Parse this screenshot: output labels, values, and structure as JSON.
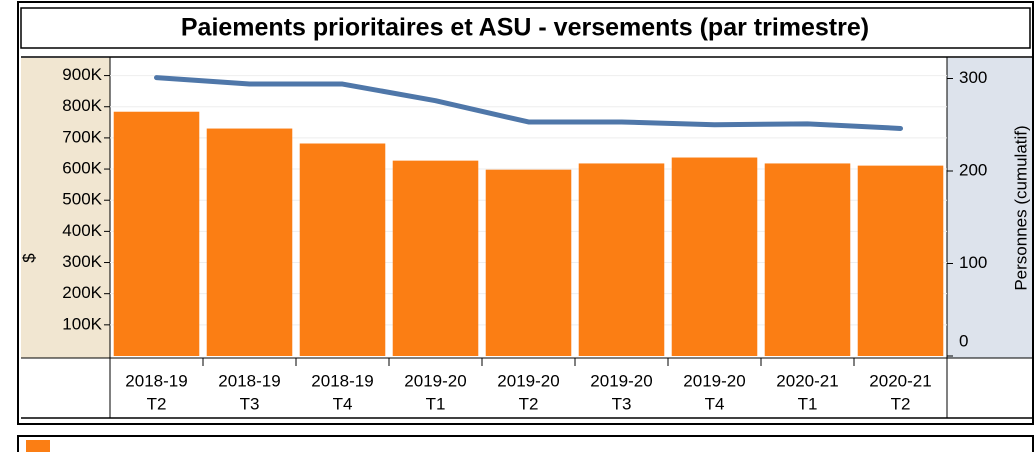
{
  "chart_data": {
    "type": "bar",
    "title": "Paiements prioritaires et ASU - versements (par trimestre)",
    "categories": [
      [
        "2018-19",
        "T2"
      ],
      [
        "2018-19",
        "T3"
      ],
      [
        "2018-19",
        "T4"
      ],
      [
        "2019-20",
        "T1"
      ],
      [
        "2019-20",
        "T2"
      ],
      [
        "2019-20",
        "T3"
      ],
      [
        "2019-20",
        "T4"
      ],
      [
        "2020-21",
        "T1"
      ],
      [
        "2020-21",
        "T2"
      ]
    ],
    "y_label": "$",
    "y2_label": "Personnes (cumulatif)",
    "ylim": [
      0,
      950000
    ],
    "yticks": [
      {
        "value": 100000,
        "label": "100K"
      },
      {
        "value": 200000,
        "label": "200K"
      },
      {
        "value": 300000,
        "label": "300K"
      },
      {
        "value": 400000,
        "label": "400K"
      },
      {
        "value": 500000,
        "label": "500K"
      },
      {
        "value": 600000,
        "label": "600K"
      },
      {
        "value": 700000,
        "label": "700K"
      },
      {
        "value": 800000,
        "label": "800K"
      },
      {
        "value": 900000,
        "label": "900K"
      }
    ],
    "y2lim": [
      0,
      320
    ],
    "y2ticks": [
      0,
      100,
      200,
      300
    ],
    "grid": true,
    "series": [
      {
        "type": "bar",
        "color": "#fb7e14",
        "values": [
          784000,
          730000,
          682000,
          627000,
          598000,
          618000,
          637000,
          618000,
          611000
        ]
      },
      {
        "type": "line",
        "axis": "y2",
        "color": "#4f77a9",
        "values": [
          301,
          294,
          294,
          276,
          253,
          253,
          250,
          251,
          246
        ]
      }
    ]
  }
}
